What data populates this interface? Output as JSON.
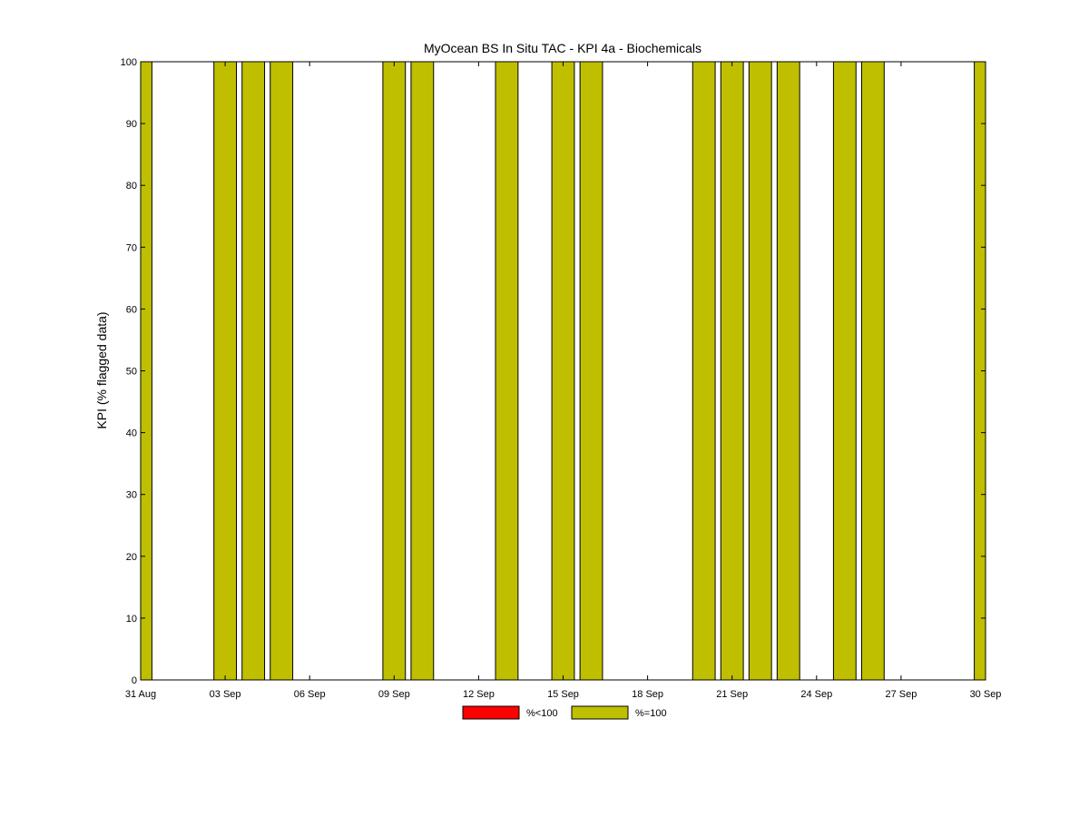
{
  "chart_data": {
    "type": "bar",
    "title": "MyOcean  BS In Situ TAC - KPI 4a - Biochemicals",
    "xlabel": "",
    "ylabel": "KPI (% flagged data)",
    "ylim": [
      0,
      100
    ],
    "yticks": [
      0,
      10,
      20,
      30,
      40,
      50,
      60,
      70,
      80,
      90,
      100
    ],
    "xlim": [
      "2012-08-31",
      "2012-09-30"
    ],
    "xtick_dates": [
      "2012-08-31",
      "2012-09-03",
      "2012-09-06",
      "2012-09-09",
      "2012-09-12",
      "2012-09-15",
      "2012-09-18",
      "2012-09-21",
      "2012-09-24",
      "2012-09-27",
      "2012-09-30"
    ],
    "xtick_labels": [
      "31 Aug",
      "03 Sep",
      "06 Sep",
      "09 Sep",
      "12 Sep",
      "15 Sep",
      "18 Sep",
      "21 Sep",
      "24 Sep",
      "27 Sep",
      "30 Sep"
    ],
    "categories": [
      "2012-08-31",
      "2012-09-03",
      "2012-09-04",
      "2012-09-05",
      "2012-09-09",
      "2012-09-10",
      "2012-09-13",
      "2012-09-15",
      "2012-09-16",
      "2012-09-20",
      "2012-09-21",
      "2012-09-22",
      "2012-09-23",
      "2012-09-25",
      "2012-09-26",
      "2012-09-30"
    ],
    "series": [
      {
        "name": "%<100",
        "color": "#ff0000",
        "values": [
          0,
          0,
          0,
          0,
          0,
          0,
          0,
          0,
          0,
          0,
          0,
          0,
          0,
          0,
          0,
          0
        ]
      },
      {
        "name": "%=100",
        "color": "#bfbf00",
        "values": [
          100,
          100,
          100,
          100,
          100,
          100,
          100,
          100,
          100,
          100,
          100,
          100,
          100,
          100,
          100,
          100
        ]
      }
    ],
    "legend_position": "bottom-center",
    "grid": false
  }
}
